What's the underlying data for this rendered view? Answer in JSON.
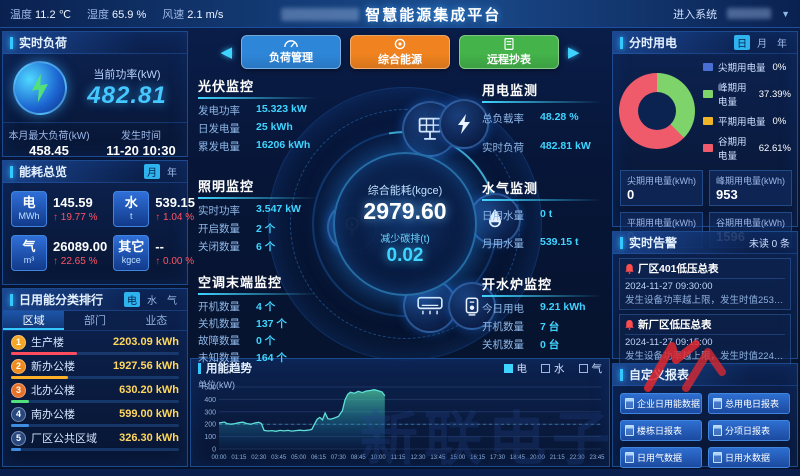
{
  "header": {
    "weather": [
      {
        "label": "温度",
        "value": "11.2 ℃"
      },
      {
        "label": "湿度",
        "value": "65.9 %"
      },
      {
        "label": "风速",
        "value": "2.1 m/s"
      }
    ],
    "title": "智慧能源集成平台",
    "enter_system": "进入系统"
  },
  "nav": {
    "prev": "◀",
    "next": "▶",
    "buttons": [
      {
        "label": "负荷管理",
        "color": "#2e86d9"
      },
      {
        "label": "综合能源",
        "color": "#f0831f"
      },
      {
        "label": "远程抄表",
        "color": "#43b34a"
      }
    ]
  },
  "realtime_load": {
    "title": "实时负荷",
    "current_label": "当前功率(kW)",
    "current_value": "482.81",
    "max_label": "本月最大负荷(kW)",
    "max_value": "458.45",
    "time_label": "发生时间",
    "time_value": "11-20 10:30"
  },
  "energy_overview": {
    "title": "能耗总览",
    "toggles": [
      "月",
      "年"
    ],
    "selected_toggle": "月",
    "items": [
      {
        "name": "电",
        "unit": "MWh",
        "value": "145.59",
        "arrow": "↑",
        "delta": "19.77 %"
      },
      {
        "name": "水",
        "unit": "t",
        "value": "539.15",
        "arrow": "↑",
        "delta": "1.04 %"
      },
      {
        "name": "气",
        "unit": "m³",
        "value": "26089.00",
        "arrow": "↑",
        "delta": "22.65 %"
      },
      {
        "name": "其它",
        "unit": "kgce",
        "value": "--",
        "arrow": "↑",
        "delta": "0.00 %"
      }
    ]
  },
  "daily_ranking": {
    "title": "日用能分类排行",
    "energy_toggles": [
      "电",
      "水",
      "气"
    ],
    "selected_energy": "电",
    "tabs": [
      "区域",
      "部门",
      "业态"
    ],
    "selected_tab": "区域",
    "items": [
      {
        "rank": "1",
        "name": "生产楼",
        "value": "2203.09 kWh",
        "bar_pct": 39,
        "bar_color": "#ff4d5e",
        "badge_color": "#f5a623"
      },
      {
        "rank": "2",
        "name": "新办公楼",
        "value": "1927.56 kWh",
        "bar_pct": 34,
        "bar_color": "#ffb029",
        "badge_color": "#f08c1f"
      },
      {
        "rank": "3",
        "name": "北办公楼",
        "value": "630.20 kWh",
        "bar_pct": 11,
        "bar_color": "#52e07c",
        "badge_color": "#e8712a"
      },
      {
        "rank": "4",
        "name": "南办公楼",
        "value": "599.00 kWh",
        "bar_pct": 10.5,
        "bar_color": "#3f8de0",
        "badge_color": "#27477f"
      },
      {
        "rank": "5",
        "name": "厂区公共区域",
        "value": "326.30 kWh",
        "bar_pct": 6,
        "bar_color": "#3f8de0",
        "badge_color": "#27477f"
      }
    ]
  },
  "monitors": {
    "pv": {
      "title": "光伏监控",
      "rows": [
        {
          "label": "发电功率",
          "value": "15.323 kW"
        },
        {
          "label": "日发电量",
          "value": "25 kWh"
        },
        {
          "label": "累发电量",
          "value": "16206 kWh"
        }
      ]
    },
    "lighting": {
      "title": "照明监控",
      "rows": [
        {
          "label": "实时功率",
          "value": "3.547 kW"
        },
        {
          "label": "开启数量",
          "value": "2 个"
        },
        {
          "label": "关闭数量",
          "value": "6 个"
        }
      ]
    },
    "ac": {
      "title": "空调末端监控",
      "rows": [
        {
          "label": "开机数量",
          "value": "4 个"
        },
        {
          "label": "关机数量",
          "value": "137 个"
        },
        {
          "label": "故障数量",
          "value": "0 个"
        },
        {
          "label": "未知数量",
          "value": "164 个"
        }
      ]
    },
    "power": {
      "title": "用电监测",
      "rows": [
        {
          "label": "总负载率",
          "value": "48.28 %"
        },
        {
          "label": "实时负荷",
          "value": "482.81 kW"
        }
      ]
    },
    "water_gas": {
      "title": "水气监测",
      "rows": [
        {
          "label": "日用水量",
          "value": "0 t"
        },
        {
          "label": "月用水量",
          "value": "539.15 t"
        }
      ]
    },
    "boiler": {
      "title": "开水炉监控",
      "rows": [
        {
          "label": "今日用电",
          "value": "9.21 kWh"
        },
        {
          "label": "开机数量",
          "value": "7 台"
        },
        {
          "label": "关机数量",
          "value": "0 台"
        }
      ]
    }
  },
  "center_gauge": {
    "energy_label": "综合能耗(kgce)",
    "energy_value": "2979.60",
    "carbon_label": "减少碳排(t)",
    "carbon_value": "0.02"
  },
  "tou": {
    "title": "分时用电",
    "toggles": [
      "日",
      "月",
      "年"
    ],
    "selected_toggle": "日",
    "chart_data": {
      "type": "pie",
      "labels": [
        "尖期用电量",
        "峰期用电量",
        "平期用电量",
        "谷期用电量"
      ],
      "values": [
        0,
        37.39,
        0,
        62.61
      ]
    },
    "legend": [
      {
        "name": "尖期用电量",
        "pct": "0%",
        "value": 0,
        "color": "#4a6fd4"
      },
      {
        "name": "峰期用电量",
        "pct": "37.39%",
        "value": 37.39,
        "color": "#7ed36b"
      },
      {
        "name": "平期用电量",
        "pct": "0%",
        "value": 0,
        "color": "#f0b429"
      },
      {
        "name": "谷期用电量",
        "pct": "62.61%",
        "value": 62.61,
        "color": "#ef5b6b"
      }
    ],
    "stats": [
      {
        "label": "尖期用电量(kWh)",
        "value": "0"
      },
      {
        "label": "峰期用电量(kWh)",
        "value": "953"
      },
      {
        "label": "平期用电量(kWh)",
        "value": "0"
      },
      {
        "label": "谷期用电量(kWh)",
        "value": "1596"
      }
    ]
  },
  "alarms": {
    "title": "实时告警",
    "unread": "未读 0 条",
    "items": [
      {
        "name": "厂区401低压总表",
        "time": "2024-11-27 09:30:00",
        "desc": "发生设备功率越上限，发生时值253.2kW，…"
      },
      {
        "name": "新厂区低压总表",
        "time": "2024-11-27 09:15:00",
        "desc": "发生设备功率越上限，发生时值224.94kW…"
      }
    ]
  },
  "reports": {
    "title": "自定义报表",
    "buttons": [
      "企业日用能数据",
      "总用电日报表",
      "楼栋日报表",
      "分项日报表",
      "日用气数据",
      "日用水数据"
    ]
  },
  "trend": {
    "title": "用能趋势",
    "unit_label": "单位(kW)",
    "legend": [
      {
        "label": "电",
        "color": "#3fd4ff",
        "selected": true
      },
      {
        "label": "水",
        "color": "",
        "selected": false
      },
      {
        "label": "气",
        "color": "",
        "selected": false
      }
    ],
    "chart_data": {
      "type": "area",
      "series_name": "电",
      "unit": "kW",
      "ylim": [
        0,
        500
      ],
      "y_ticks": [
        0,
        100,
        200,
        300,
        400,
        500
      ],
      "x_ticks": [
        "00:00",
        "01:15",
        "02:30",
        "03:45",
        "05:00",
        "06:15",
        "07:30",
        "08:45",
        "10:00",
        "11:15",
        "12:30",
        "13:45",
        "15:00",
        "16:15",
        "17:30",
        "18:45",
        "20:00",
        "21:15",
        "22:30",
        "23:45"
      ],
      "x_tick_interval_min": 75,
      "x_range_min": [
        0,
        1440
      ],
      "points": [
        [
          0,
          210
        ],
        [
          20,
          218
        ],
        [
          30,
          205
        ],
        [
          45,
          200
        ],
        [
          60,
          205
        ],
        [
          75,
          212
        ],
        [
          90,
          216
        ],
        [
          105,
          205
        ],
        [
          120,
          200
        ],
        [
          135,
          210
        ],
        [
          150,
          215
        ],
        [
          160,
          205
        ],
        [
          170,
          150
        ],
        [
          185,
          145
        ],
        [
          200,
          148
        ],
        [
          215,
          143
        ],
        [
          230,
          150
        ],
        [
          245,
          146
        ],
        [
          260,
          150
        ],
        [
          275,
          144
        ],
        [
          290,
          148
        ],
        [
          305,
          152
        ],
        [
          320,
          148
        ],
        [
          335,
          152
        ],
        [
          350,
          158
        ],
        [
          360,
          200
        ],
        [
          370,
          240
        ],
        [
          380,
          255
        ],
        [
          390,
          235
        ],
        [
          400,
          290
        ],
        [
          410,
          245
        ],
        [
          420,
          240
        ],
        [
          435,
          250
        ],
        [
          450,
          262
        ],
        [
          465,
          310
        ],
        [
          475,
          395
        ],
        [
          485,
          440
        ],
        [
          495,
          458
        ],
        [
          510,
          450
        ],
        [
          525,
          465
        ],
        [
          540,
          455
        ],
        [
          555,
          468
        ],
        [
          570,
          472
        ],
        [
          585,
          478
        ],
        [
          600,
          470
        ],
        [
          615,
          460
        ],
        [
          625,
          430
        ]
      ]
    }
  },
  "watermark": {
    "text": "新联电子"
  }
}
